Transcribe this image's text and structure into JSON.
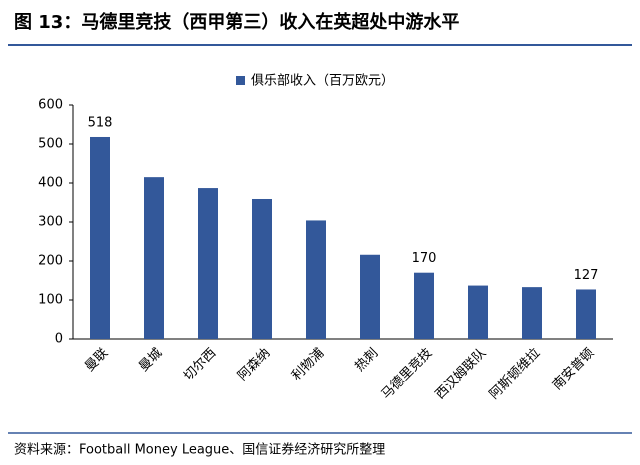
{
  "chart_data": {
    "type": "bar",
    "title": "图 13：马德里竞技（西甲第三）收入在英超处中游水平",
    "legend": "俱乐部收入（百万欧元）",
    "source": "资料来源：Football Money League、国信证券经济研究所整理",
    "categories": [
      "曼联",
      "曼城",
      "切尔西",
      "阿森纳",
      "利物浦",
      "热刺",
      "马德里竞技",
      "西汉姆联队",
      "阿斯顿维拉",
      "南安普顿"
    ],
    "values": [
      518,
      415,
      387,
      359,
      304,
      216,
      170,
      137,
      133,
      127
    ],
    "value_labels": [
      "518",
      null,
      null,
      null,
      null,
      null,
      "170",
      null,
      null,
      "127"
    ],
    "color": "#33589a",
    "ylim": [
      0,
      600
    ],
    "yticks": [
      0,
      100,
      200,
      300,
      400,
      500,
      600
    ],
    "grid": false
  }
}
